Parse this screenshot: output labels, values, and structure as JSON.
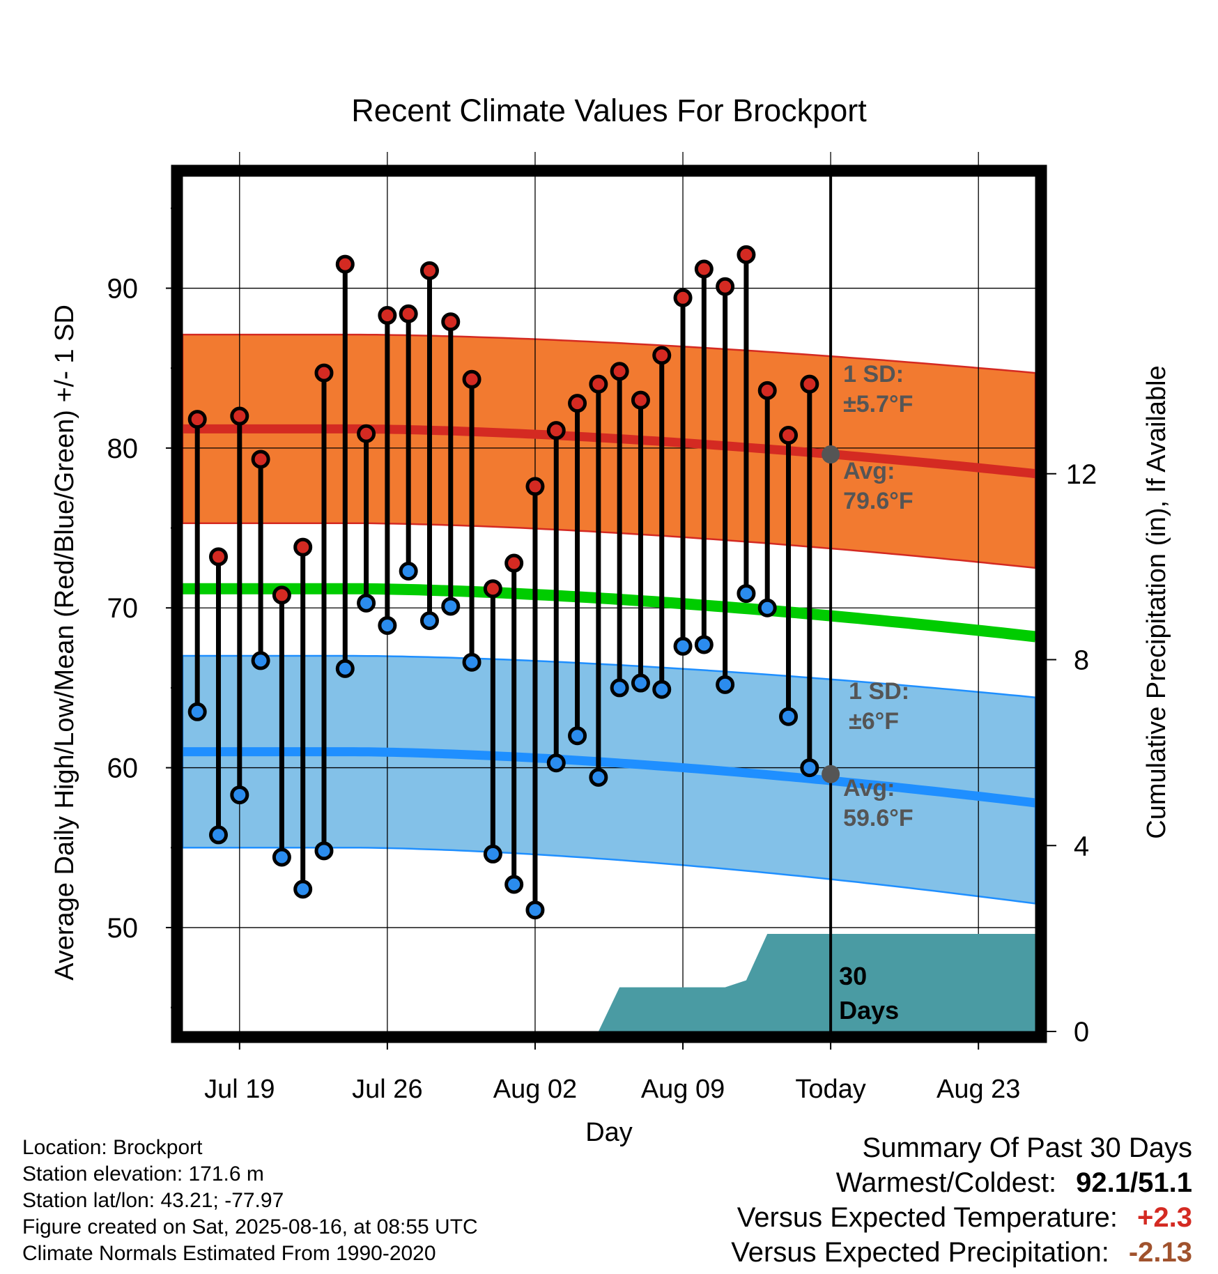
{
  "chart_data": {
    "type": "line",
    "title": "Recent Climate Values For Brockport",
    "xlabel": "Day",
    "ylabel": "Average Daily High/Low/Mean (Red/Blue/Green) +/- 1 SD",
    "y2label": "Cumulative Precipitation (in), If Available",
    "ylim": [
      43.5,
      97
    ],
    "y2lim": [
      0,
      18.4
    ],
    "yticks": [
      50,
      60,
      70,
      80,
      90
    ],
    "y2ticks": [
      0,
      4,
      8,
      12
    ],
    "xtick_labels": [
      "Jul 19",
      "Jul 26",
      "Aug 02",
      "Aug 09",
      "Today",
      "Aug 23"
    ],
    "xtick_days": [
      19,
      26,
      33,
      40,
      47,
      54
    ],
    "xlim_days": [
      16.3,
      56.7
    ],
    "today_day": 47,
    "normal_high": {
      "start": 81.2,
      "end": 78.4,
      "sd_upper_start": 87.1,
      "sd_upper_end": 84.7,
      "sd_lower_start": 75.3,
      "sd_lower_end": 72.5
    },
    "normal_mean": {
      "start": 71.2,
      "end": 68.2
    },
    "normal_low": {
      "start": 61.0,
      "end": 57.8,
      "sd_upper_start": 67.0,
      "sd_upper_end": 64.4,
      "sd_lower_start": 55.0,
      "sd_lower_end": 51.5
    },
    "observations": {
      "days": [
        17,
        18,
        19,
        20,
        21,
        22,
        23,
        24,
        25,
        26,
        27,
        28,
        29,
        30,
        31,
        32,
        33,
        34,
        35,
        36,
        37,
        38,
        39,
        40,
        41,
        42,
        43,
        44,
        45,
        46
      ],
      "highs": [
        81.8,
        73.2,
        82.0,
        79.3,
        70.8,
        73.8,
        84.7,
        91.5,
        80.9,
        88.3,
        88.4,
        91.1,
        87.9,
        84.3,
        71.2,
        72.8,
        77.6,
        81.1,
        82.8,
        84.0,
        84.8,
        83.0,
        85.8,
        89.4,
        91.2,
        90.1,
        92.1,
        83.6,
        80.8,
        84.0
      ],
      "lows": [
        63.5,
        55.8,
        58.3,
        66.7,
        54.4,
        52.4,
        54.8,
        66.2,
        70.3,
        68.9,
        72.3,
        69.2,
        70.1,
        66.6,
        54.6,
        52.7,
        51.1,
        60.3,
        62.0,
        59.4,
        65.0,
        65.3,
        64.9,
        67.6,
        67.7,
        65.2,
        70.9,
        70.0,
        63.2,
        60.0
      ]
    },
    "precip_cumulative": {
      "days": [
        16.3,
        19,
        20,
        21,
        22,
        23,
        24,
        25,
        26,
        27,
        28,
        29,
        30,
        31,
        32,
        33,
        34,
        35,
        36,
        37,
        38,
        39,
        40,
        41,
        42,
        43,
        44,
        45,
        46,
        47,
        56.7
      ],
      "values": [
        0,
        0,
        0,
        0,
        0,
        0,
        0,
        0,
        0,
        0,
        0,
        0,
        0,
        0,
        0,
        0,
        0,
        0,
        0,
        0.95,
        0.95,
        0.95,
        0.95,
        0.95,
        0.95,
        1.1,
        2.1,
        2.1,
        2.1,
        2.1,
        2.1
      ]
    },
    "annotations": {
      "high_sd": "1 SD:",
      "high_sd_value": "±5.7°F",
      "high_avg": "Avg:",
      "high_avg_value": "79.6°F",
      "high_avg_marker": 79.6,
      "low_sd": "1 SD:",
      "low_sd_value": "±6°F",
      "low_avg": "Avg:",
      "low_avg_value": "59.6°F",
      "low_avg_marker": 59.6,
      "days_line1": "30",
      "days_line2": "Days"
    },
    "colors": {
      "high_band": "#f27a30",
      "high_line": "#d42a22",
      "mean_line": "#00cc00",
      "low_band": "#83c1e8",
      "low_line": "#1f8fff",
      "high_dot": "#d42a22",
      "low_dot": "#2b8cee",
      "precip": "#4a9ba3",
      "annotation": "#555555"
    },
    "grid": true
  },
  "info": {
    "location": "Location: Brockport",
    "elevation": "Station elevation: 171.6 m",
    "latlon": "Station lat/lon: 43.21; -77.97",
    "created": "Figure created on Sat, 2025-08-16, at 08:55 UTC",
    "normals": "Climate Normals Estimated From 1990-2020"
  },
  "summary": {
    "heading": "Summary Of Past 30 Days",
    "warm_cold_label": "Warmest/Coldest:",
    "warm_cold_value": "92.1/51.1",
    "temp_label": "Versus Expected Temperature:",
    "temp_value": "+2.3",
    "temp_color": "#d42a22",
    "precip_label": "Versus Expected Precipitation:",
    "precip_value": "-2.13",
    "precip_color": "#a0522d"
  }
}
